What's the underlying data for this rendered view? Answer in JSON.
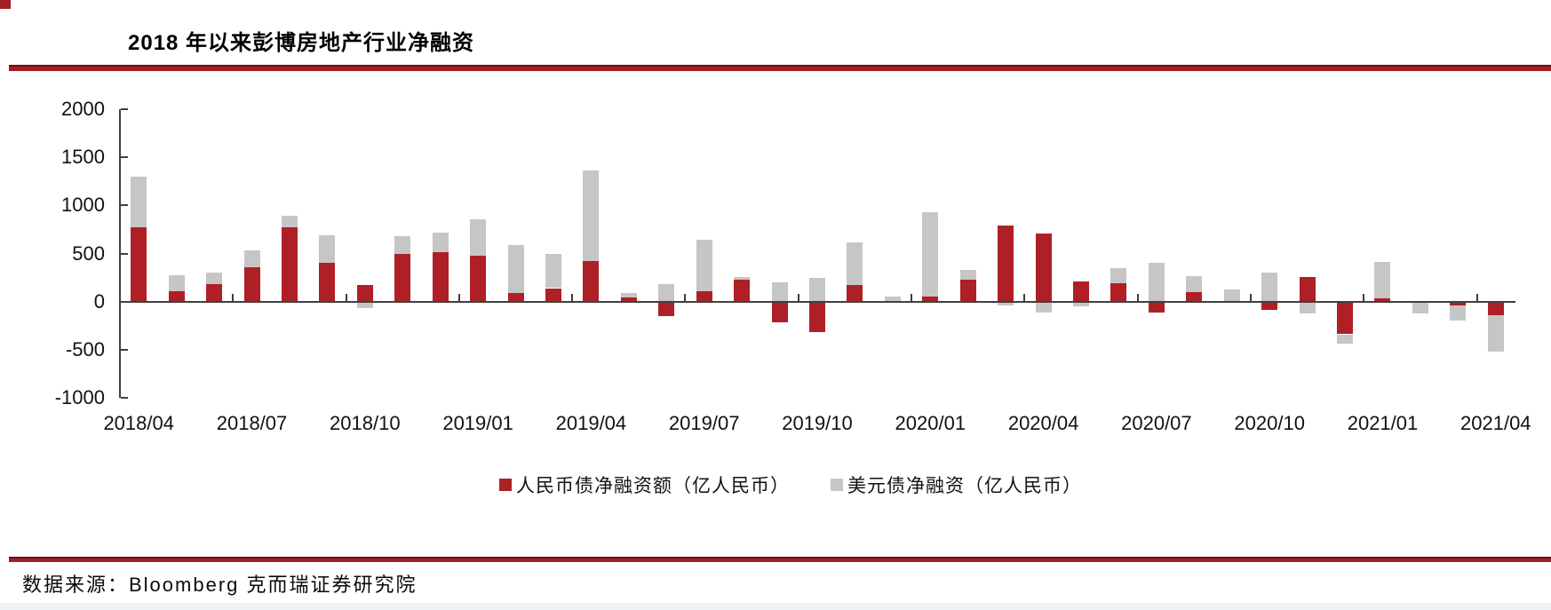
{
  "footer": {
    "source": "数据来源：Bloomberg 克而瑞证券研究院"
  },
  "colors": {
    "rmb_series": "#ae2026",
    "usd_series": "#c6c6c6",
    "divider_red": "#a41e22",
    "axis": "#3f3f3f"
  },
  "chart_data": {
    "type": "bar",
    "stacked": true,
    "title": "2018 年以来彭博房地产行业净融资",
    "ylabel": "",
    "xlabel": "",
    "ylim": [
      -1000,
      2000
    ],
    "y_ticks": [
      2000,
      1500,
      1000,
      500,
      0,
      -500,
      -1000
    ],
    "grid": false,
    "legend_position": "bottom",
    "categories": [
      "2018/04",
      "2018/05",
      "2018/06",
      "2018/07",
      "2018/08",
      "2018/09",
      "2018/10",
      "2018/11",
      "2018/12",
      "2019/01",
      "2019/02",
      "2019/03",
      "2019/04",
      "2019/05",
      "2019/06",
      "2019/07",
      "2019/08",
      "2019/09",
      "2019/10",
      "2019/11",
      "2019/12",
      "2020/01",
      "2020/02",
      "2020/03",
      "2020/04",
      "2020/05",
      "2020/06",
      "2020/07",
      "2020/08",
      "2020/09",
      "2020/10",
      "2020/11",
      "2020/12",
      "2021/01",
      "2021/02",
      "2021/03",
      "2021/04"
    ],
    "x_tick_labels": [
      "2018/04",
      "2018/07",
      "2018/10",
      "2019/01",
      "2019/04",
      "2019/07",
      "2019/10",
      "2020/01",
      "2020/04",
      "2020/07",
      "2020/10",
      "2021/01",
      "2021/04"
    ],
    "x_tick_label_step": 3,
    "series": [
      {
        "name": "人民币债净融资额（亿人民币）",
        "color": "#ae2026",
        "values": [
          770,
          110,
          180,
          355,
          770,
          400,
          170,
          495,
          510,
          480,
          90,
          140,
          425,
          40,
          -155,
          110,
          225,
          -215,
          -320,
          175,
          0,
          55,
          225,
          790,
          705,
          210,
          195,
          -115,
          95,
          10,
          -85,
          260,
          -340,
          30,
          0,
          -40,
          -140
        ]
      },
      {
        "name": "美元债净融资（亿人民币）",
        "color": "#c6c6c6",
        "values": [
          530,
          165,
          125,
          175,
          120,
          290,
          -70,
          185,
          210,
          380,
          500,
          355,
          935,
          45,
          185,
          530,
          35,
          200,
          245,
          440,
          55,
          875,
          100,
          -40,
          -115,
          -45,
          155,
          400,
          170,
          115,
          300,
          -125,
          -100,
          380,
          -125,
          -155,
          -380
        ]
      }
    ]
  }
}
